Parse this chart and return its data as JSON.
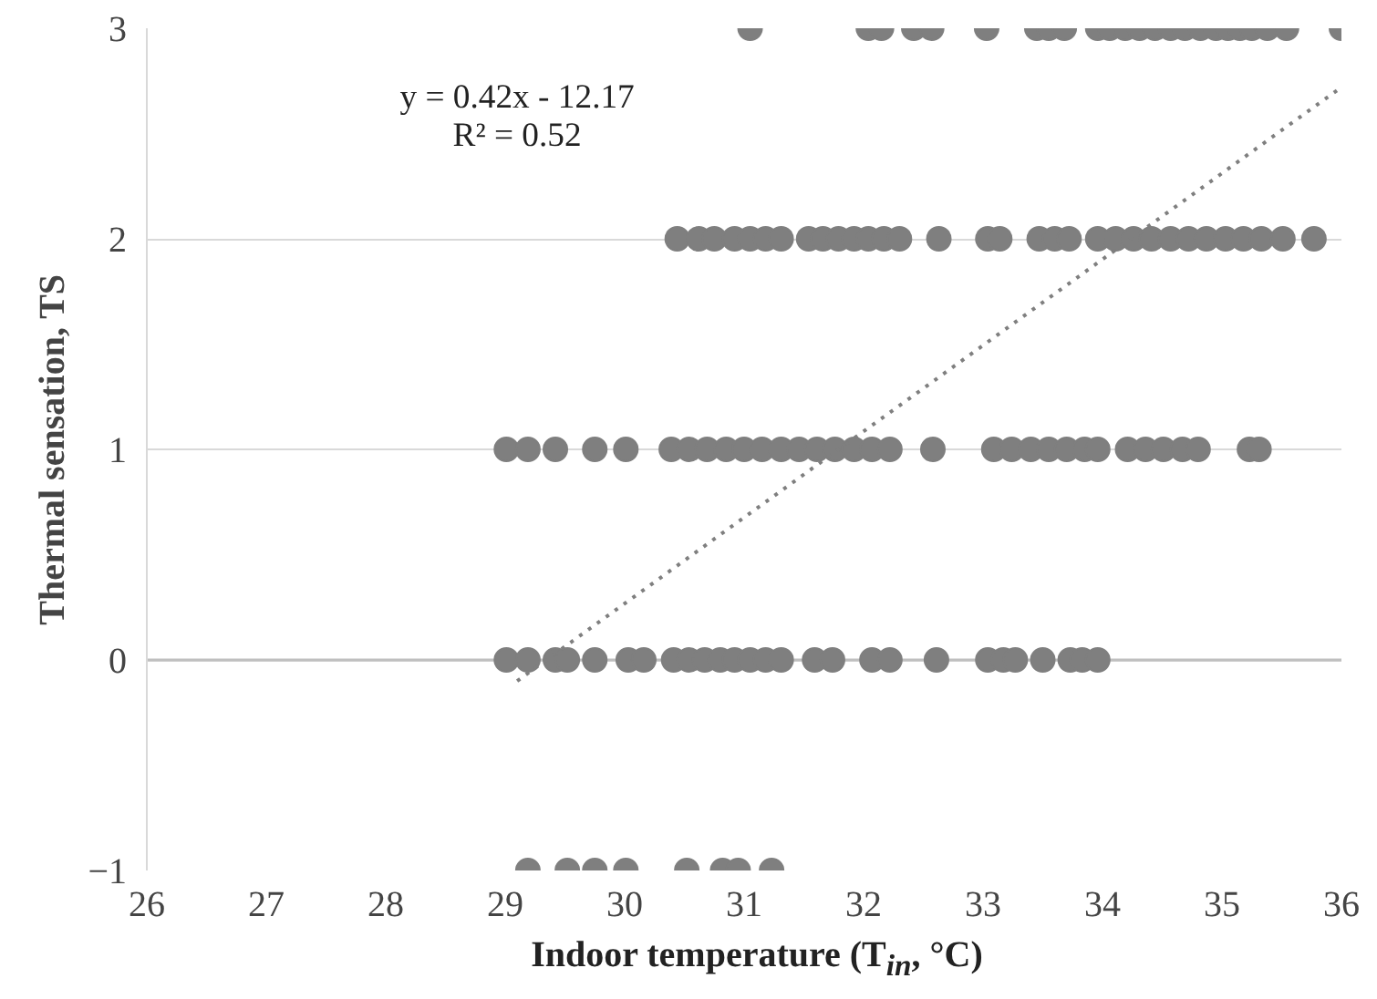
{
  "chart_data": {
    "type": "scatter",
    "xlabel": "Indoor temperature (T$_{in}$, °C)",
    "ylabel": "Thermal sensation, TS",
    "xlim": [
      26,
      36
    ],
    "xticks": [
      26,
      27,
      28,
      29,
      30,
      31,
      32,
      33,
      34,
      35,
      36
    ],
    "ylim": [
      -1,
      3
    ],
    "yticks": [
      -1,
      0,
      1,
      2,
      3
    ],
    "grid": "y",
    "marker": "circle",
    "annotations": [
      "y = 0.42x - 12.17",
      "R² = 0.52"
    ],
    "series": [
      {
        "color": "#7f7f7f",
        "x": [
          31.05,
          32.04,
          32.15,
          32.42,
          32.57,
          33.03,
          33.45,
          33.55,
          33.68,
          33.96,
          34.06,
          34.19,
          34.31,
          34.44,
          34.57,
          34.69,
          34.82,
          34.95,
          35.05,
          35.15,
          35.25,
          35.38,
          35.54,
          36.0
        ],
        "values": [
          3,
          3,
          3,
          3,
          3,
          3,
          3,
          3,
          3,
          3,
          3,
          3,
          3,
          3,
          3,
          3,
          3,
          3,
          3,
          3,
          3,
          3,
          3,
          3
        ]
      },
      {
        "color": "#7f7f7f",
        "x": [
          30.44,
          30.62,
          30.75,
          30.92,
          31.05,
          31.18,
          31.31,
          31.54,
          31.66,
          31.79,
          31.92,
          32.04,
          32.17,
          32.3,
          32.63,
          33.04,
          33.14,
          33.47,
          33.6,
          33.72,
          33.96,
          34.11,
          34.26,
          34.41,
          34.57,
          34.72,
          34.87,
          35.03,
          35.18,
          35.33,
          35.51,
          35.77
        ],
        "values": [
          2,
          2,
          2,
          2,
          2,
          2,
          2,
          2,
          2,
          2,
          2,
          2,
          2,
          2,
          2,
          2,
          2,
          2,
          2,
          2,
          2,
          2,
          2,
          2,
          2,
          2,
          2,
          2,
          2,
          2,
          2,
          2
        ]
      },
      {
        "color": "#7f7f7f",
        "x": [
          29.01,
          29.19,
          29.42,
          29.75,
          30.01,
          30.39,
          30.54,
          30.69,
          30.85,
          31.0,
          31.15,
          31.31,
          31.46,
          31.61,
          31.76,
          31.92,
          32.07,
          32.22,
          32.58,
          33.09,
          33.24,
          33.4,
          33.55,
          33.7,
          33.85,
          33.96,
          34.21,
          34.36,
          34.51,
          34.67,
          34.8,
          35.23,
          35.31
        ],
        "values": [
          1,
          1,
          1,
          1,
          1,
          1,
          1,
          1,
          1,
          1,
          1,
          1,
          1,
          1,
          1,
          1,
          1,
          1,
          1,
          1,
          1,
          1,
          1,
          1,
          1,
          1,
          1,
          1,
          1,
          1,
          1,
          1,
          1
        ]
      },
      {
        "color": "#7f7f7f",
        "x": [
          29.01,
          29.19,
          29.42,
          29.52,
          29.75,
          30.03,
          30.16,
          30.41,
          30.54,
          30.67,
          30.8,
          30.92,
          31.05,
          31.18,
          31.31,
          31.59,
          31.74,
          32.07,
          32.22,
          32.61,
          33.04,
          33.17,
          33.27,
          33.5,
          33.73,
          33.83,
          33.96
        ],
        "values": [
          0,
          0,
          0,
          0,
          0,
          0,
          0,
          0,
          0,
          0,
          0,
          0,
          0,
          0,
          0,
          0,
          0,
          0,
          0,
          0,
          0,
          0,
          0,
          0,
          0,
          0,
          0
        ]
      },
      {
        "color": "#7f7f7f",
        "x": [
          29.19,
          29.52,
          29.75,
          30.01,
          30.52,
          30.82,
          30.95,
          31.23
        ],
        "values": [
          -1,
          -1,
          -1,
          -1,
          -1,
          -1,
          -1,
          -1
        ]
      },
      {
        "type": "line",
        "color": "#7f7f7f",
        "line_style": "dotted",
        "marker": "none",
        "x": [
          29.1,
          36.0
        ],
        "values": [
          -0.1,
          2.72
        ]
      }
    ]
  }
}
